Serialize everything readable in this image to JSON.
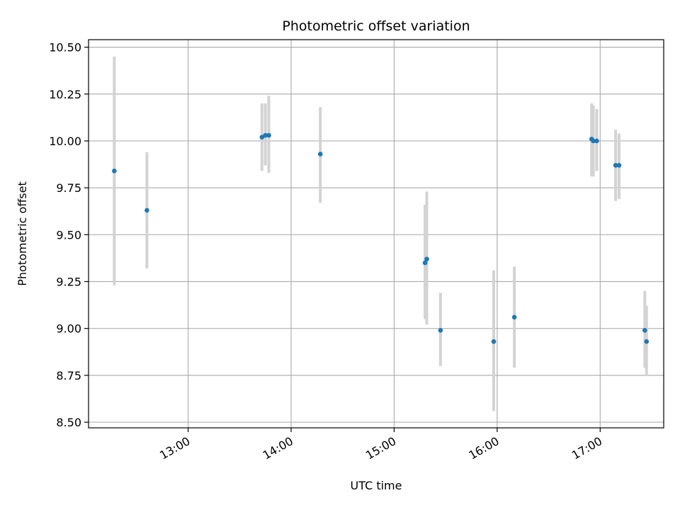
{
  "chart_data": {
    "type": "scatter",
    "title": "Photometric offset variation",
    "xlabel": "UTC time",
    "ylabel": "Photometric offset",
    "x_axis_kind": "time (HH:MM)",
    "xlim": [
      "12:02",
      "17:37"
    ],
    "ylim": [
      8.47,
      10.54
    ],
    "xticks": [
      "13:00",
      "14:00",
      "15:00",
      "16:00",
      "17:00"
    ],
    "yticks": [
      8.5,
      8.75,
      9.0,
      9.25,
      9.5,
      9.75,
      10.0,
      10.25,
      10.5
    ],
    "ytick_labels": [
      "8.50",
      "8.75",
      "9.00",
      "9.25",
      "9.50",
      "9.75",
      "10.00",
      "10.25",
      "10.50"
    ],
    "grid": true,
    "marker_color": "#1f77b4",
    "errorbar_color": "#d3d3d3",
    "points": [
      {
        "time": "12:17",
        "value": 9.84,
        "low": 9.23,
        "high": 10.45
      },
      {
        "time": "12:36",
        "value": 9.63,
        "low": 9.32,
        "high": 9.94
      },
      {
        "time": "13:43",
        "value": 10.02,
        "low": 9.84,
        "high": 10.2
      },
      {
        "time": "13:45",
        "value": 10.03,
        "low": 9.87,
        "high": 10.2
      },
      {
        "time": "13:47",
        "value": 10.03,
        "low": 9.83,
        "high": 10.24
      },
      {
        "time": "14:17",
        "value": 9.93,
        "low": 9.67,
        "high": 10.18
      },
      {
        "time": "15:18",
        "value": 9.35,
        "low": 9.05,
        "high": 9.66
      },
      {
        "time": "15:19",
        "value": 9.37,
        "low": 9.02,
        "high": 9.73
      },
      {
        "time": "15:27",
        "value": 8.99,
        "low": 8.8,
        "high": 9.19
      },
      {
        "time": "15:58",
        "value": 8.93,
        "low": 8.56,
        "high": 9.31
      },
      {
        "time": "16:10",
        "value": 9.06,
        "low": 8.79,
        "high": 9.33
      },
      {
        "time": "16:55",
        "value": 10.01,
        "low": 9.81,
        "high": 10.2
      },
      {
        "time": "16:56",
        "value": 10.0,
        "low": 9.81,
        "high": 10.19
      },
      {
        "time": "16:58",
        "value": 10.0,
        "low": 9.84,
        "high": 10.17
      },
      {
        "time": "17:09",
        "value": 9.87,
        "low": 9.68,
        "high": 10.06
      },
      {
        "time": "17:11",
        "value": 9.87,
        "low": 9.69,
        "high": 10.04
      },
      {
        "time": "17:26",
        "value": 8.99,
        "low": 8.79,
        "high": 9.2
      },
      {
        "time": "17:27",
        "value": 8.93,
        "low": 8.75,
        "high": 9.12
      }
    ]
  }
}
